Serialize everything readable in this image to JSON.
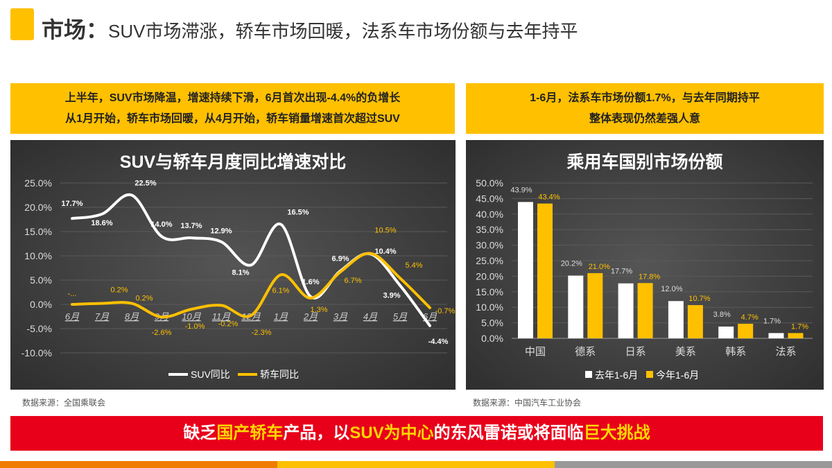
{
  "header": {
    "title_bold": "市场：",
    "title_rest": "SUV市场滞涨，轿车市场回暖，法系车市场份额与去年持平"
  },
  "left_box": {
    "line1": "上半年，SUV市场降温，增速持续下滑，6月首次出现-4.4%的负增长",
    "line2": "从1月开始，轿车市场回暖，从4月开始，轿车销量增速首次超过SUV"
  },
  "right_box": {
    "line1": "1-6月，法系车市场份额1.7%，与去年同期持平",
    "line2": "整体表现仍然差强人意"
  },
  "left_source": "数据来源：全国乘联会",
  "right_source": "数据来源：中国汽车工业协会",
  "banner": {
    "p1": "缺乏",
    "p2": "国产轿车",
    "p3": "产品，以",
    "p4": "SUV为中心",
    "p5": "的东风雷诺或将面临",
    "p6": "巨大挑战"
  },
  "colors": {
    "yellow": "#FFC000",
    "white": "#FFFFFF",
    "red": "#E8001A"
  },
  "chart_data": [
    {
      "type": "line",
      "title": "SUV与轿车月度同比增速对比",
      "categories": [
        "6月",
        "7月",
        "8月",
        "9月",
        "10月",
        "11月",
        "12月",
        "1月",
        "2月",
        "3月",
        "4月",
        "5月",
        "6月"
      ],
      "ylim": [
        -10,
        25
      ],
      "yticks": [
        "25.0%",
        "20.0%",
        "15.0%",
        "10.0%",
        "5.0%",
        "0.0%",
        "-5.0%",
        "-10.0%"
      ],
      "ytick_values": [
        25,
        20,
        15,
        10,
        5,
        0,
        -5,
        -10
      ],
      "series": [
        {
          "name": "SUV同比",
          "color": "#FFFFFF",
          "values": [
            17.7,
            18.6,
            22.5,
            14.0,
            13.7,
            12.9,
            8.1,
            16.5,
            1.6,
            6.9,
            10.4,
            3.9,
            -4.4
          ],
          "labels": [
            "17.7%",
            "18.6%",
            "22.5%",
            "14.0%",
            "13.7%",
            "12.9%",
            "8.1%",
            "16.5%",
            "1.6%",
            "6.9%",
            "10.4%",
            "3.9%",
            "-4.4%"
          ]
        },
        {
          "name": "轿车同比",
          "color": "#FFC000",
          "values": [
            0,
            0.2,
            0.2,
            -2.6,
            -1.0,
            -0.2,
            -2.3,
            6.1,
            1.3,
            6.7,
            10.5,
            5.4,
            -0.7
          ],
          "labels": [
            "-...",
            "0.2%",
            "0.2%",
            "-2.6%",
            "-1.0%",
            "-0.2%",
            "-2.3%",
            "6.1%",
            "1.3%",
            "6.7%",
            "10.5%",
            "5.4%",
            "-0.7%"
          ]
        }
      ],
      "legend": "bottom"
    },
    {
      "type": "bar",
      "title": "乘用车国别市场份额",
      "categories": [
        "中国",
        "德系",
        "日系",
        "美系",
        "韩系",
        "法系"
      ],
      "ylim": [
        0,
        50
      ],
      "yticks": [
        "50.0%",
        "45.0%",
        "40.0%",
        "35.0%",
        "30.0%",
        "25.0%",
        "20.0%",
        "15.0%",
        "10.0%",
        "5.0%",
        "0.0%"
      ],
      "ytick_values": [
        50,
        45,
        40,
        35,
        30,
        25,
        20,
        15,
        10,
        5,
        0
      ],
      "series": [
        {
          "name": "去年1-6月",
          "color": "#FFFFFF",
          "values": [
            43.9,
            20.2,
            17.7,
            12.0,
            3.8,
            1.7
          ],
          "labels": [
            "43.9%",
            "20.2%",
            "17.7%",
            "12.0%",
            "3.8%",
            "1.7%"
          ]
        },
        {
          "name": "今年1-6月",
          "color": "#FFC000",
          "values": [
            43.4,
            21.0,
            17.8,
            10.7,
            4.7,
            1.7
          ],
          "labels": [
            "43.4%",
            "21.0%",
            "17.8%",
            "10.7%",
            "4.7%",
            "1.7%"
          ]
        }
      ],
      "legend": "bottom"
    }
  ]
}
